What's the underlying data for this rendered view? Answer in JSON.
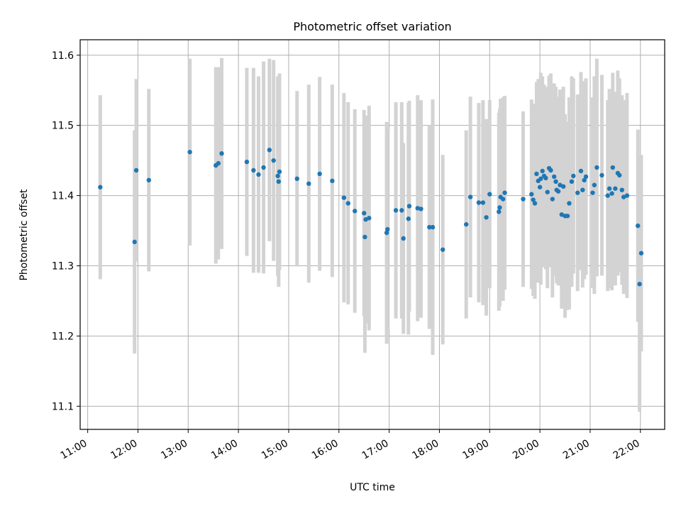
{
  "chart_data": {
    "type": "scatter",
    "title": "Photometric offset variation",
    "xlabel": "UTC time",
    "ylabel": "Photometric offset",
    "x_unit": "UTC time (HH:MM)",
    "x_ticks": [
      "11:00",
      "12:00",
      "13:00",
      "14:00",
      "15:00",
      "16:00",
      "17:00",
      "18:00",
      "19:00",
      "20:00",
      "21:00",
      "22:00"
    ],
    "xlim": [
      "10:51",
      "22:29"
    ],
    "y_ticks": [
      "11.1",
      "11.2",
      "11.3",
      "11.4",
      "11.5",
      "11.6"
    ],
    "ylim": [
      11.067,
      11.622
    ],
    "grid": true,
    "colors": {
      "point": "#1f77b4",
      "errorbar": "#d3d3d3",
      "grid": "#b0b0b0"
    },
    "series": [
      {
        "x": [
          "11:15",
          "11:56",
          "11:58",
          "12:13",
          "13:02",
          "13:33",
          "13:36",
          "13:40",
          "14:10",
          "14:18",
          "14:24",
          "14:30",
          "14:37",
          "14:42",
          "14:47",
          "14:48",
          "14:49",
          "15:10",
          "15:24",
          "15:37",
          "15:52",
          "16:06",
          "16:11",
          "16:19",
          "16:30",
          "16:31",
          "16:32",
          "16:36",
          "16:57",
          "16:58",
          "17:08",
          "17:15",
          "17:17",
          "17:23",
          "17:24",
          "17:34",
          "17:38",
          "17:48",
          "17:52",
          "18:04",
          "18:32",
          "18:37",
          "18:47",
          "18:52",
          "18:56",
          "19:00",
          "19:11",
          "19:12",
          "19:13",
          "19:16",
          "19:18",
          "19:40",
          "19:50",
          "19:52",
          "19:54",
          "19:56",
          "19:58",
          "20:00",
          "20:01",
          "20:03",
          "20:05",
          "20:07",
          "20:09",
          "20:11",
          "20:13",
          "20:15",
          "20:17",
          "20:19",
          "20:20",
          "20:22",
          "20:24",
          "20:26",
          "20:28",
          "20:30",
          "20:33",
          "20:35",
          "20:38",
          "20:40",
          "20:45",
          "20:49",
          "20:51",
          "20:53",
          "20:55",
          "21:03",
          "21:05",
          "21:08",
          "21:14",
          "21:21",
          "21:23",
          "21:26",
          "21:27",
          "21:30",
          "21:33",
          "21:35",
          "21:38",
          "21:40",
          "21:44",
          "21:57",
          "21:59",
          "22:01"
        ],
        "y": [
          11.412,
          11.334,
          11.436,
          11.422,
          11.462,
          11.443,
          11.446,
          11.46,
          11.448,
          11.436,
          11.43,
          11.44,
          11.465,
          11.45,
          11.428,
          11.42,
          11.434,
          11.424,
          11.417,
          11.431,
          11.421,
          11.397,
          11.389,
          11.378,
          11.375,
          11.341,
          11.366,
          11.368,
          11.347,
          11.352,
          11.379,
          11.379,
          11.339,
          11.367,
          11.385,
          11.382,
          11.381,
          11.355,
          11.355,
          11.323,
          11.359,
          11.398,
          11.39,
          11.39,
          11.369,
          11.402,
          11.377,
          11.383,
          11.398,
          11.395,
          11.404,
          11.395,
          11.402,
          11.394,
          11.389,
          11.431,
          11.421,
          11.412,
          11.424,
          11.435,
          11.428,
          11.425,
          11.405,
          11.439,
          11.436,
          11.395,
          11.427,
          11.42,
          11.408,
          11.406,
          11.415,
          11.373,
          11.413,
          11.371,
          11.371,
          11.389,
          11.42,
          11.428,
          11.404,
          11.435,
          11.408,
          11.422,
          11.427,
          11.404,
          11.415,
          11.44,
          11.429,
          11.4,
          11.41,
          11.403,
          11.44,
          11.41,
          11.432,
          11.429,
          11.408,
          11.398,
          11.4,
          11.357,
          11.274,
          11.318
        ],
        "err": [
          0.131,
          0.159,
          0.13,
          0.13,
          0.133,
          0.14,
          0.137,
          0.136,
          0.134,
          0.146,
          0.14,
          0.151,
          0.13,
          0.143,
          0.142,
          0.15,
          0.14,
          0.125,
          0.141,
          0.138,
          0.137,
          0.149,
          0.144,
          0.145,
          0.147,
          0.165,
          0.148,
          0.16,
          0.158,
          0.142,
          0.154,
          0.154,
          0.136,
          0.165,
          0.15,
          0.161,
          0.155,
          0.145,
          0.182,
          0.135,
          0.134,
          0.143,
          0.142,
          0.146,
          0.14,
          0.134,
          0.141,
          0.141,
          0.14,
          0.145,
          0.138,
          0.125,
          0.135,
          0.137,
          0.136,
          0.131,
          0.145,
          0.13,
          0.151,
          0.135,
          0.13,
          0.13,
          0.137,
          0.132,
          0.138,
          0.14,
          0.133,
          0.135,
          0.133,
          0.134,
          0.136,
          0.134,
          0.142,
          0.145,
          0.134,
          0.151,
          0.15,
          0.139,
          0.14,
          0.141,
          0.139,
          0.141,
          0.14,
          0.136,
          0.155,
          0.155,
          0.143,
          0.136,
          0.142,
          0.138,
          0.135,
          0.138,
          0.146,
          0.138,
          0.135,
          0.138,
          0.146,
          0.137,
          0.182,
          0.14
        ]
      }
    ]
  }
}
